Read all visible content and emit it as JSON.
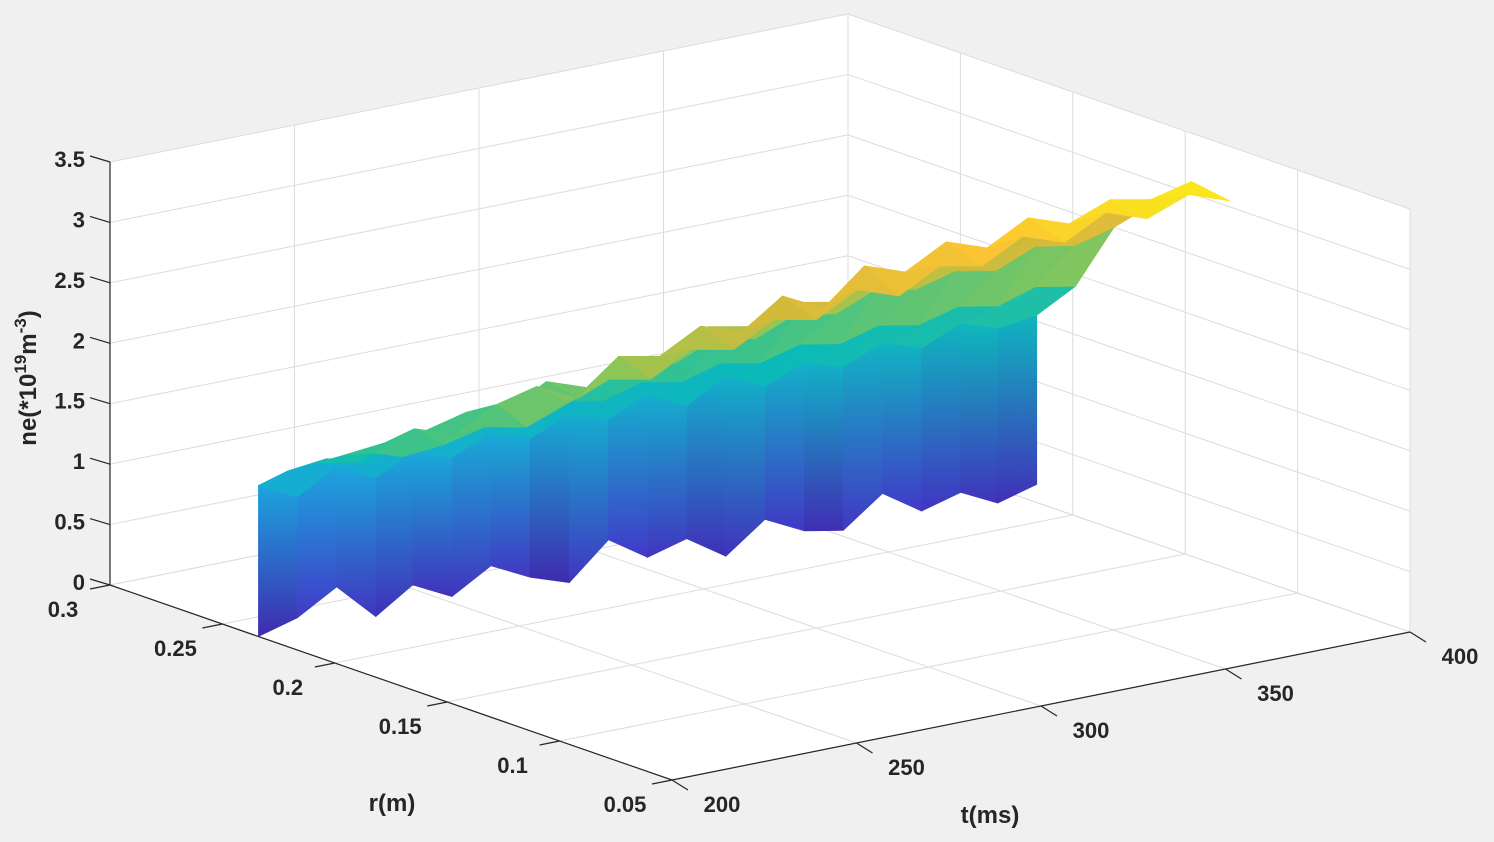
{
  "chart_data": {
    "type": "surface",
    "title": "",
    "xlabel": "t(ms)",
    "ylabel": "r(m)",
    "zlabel_parts": {
      "pre": "ne(*10",
      "sup1": "19",
      "mid": "m",
      "sup2": "-3",
      "post": ")"
    },
    "xlim": [
      200,
      400
    ],
    "ylim": [
      0.05,
      0.3
    ],
    "zlim": [
      0,
      3.5
    ],
    "grid": true,
    "colormap": "parula",
    "clim": [
      0,
      3.2
    ],
    "x_ticks": [
      "200",
      "250",
      "300",
      "350",
      "400"
    ],
    "y_ticks": [
      "0.05",
      "0.1",
      "0.15",
      "0.2",
      "0.25",
      "0.3"
    ],
    "z_ticks": [
      "0",
      "0.5",
      "1",
      "1.5",
      "2",
      "2.5",
      "3",
      "3.5"
    ],
    "profile_s": [
      0,
      0.2,
      0.4,
      0.6,
      0.8,
      1.0
    ],
    "t": [
      200,
      210,
      220,
      230,
      240,
      250,
      260,
      270,
      280,
      290,
      300,
      310,
      320,
      330,
      340,
      350,
      360,
      370,
      380,
      390,
      400
    ],
    "r_edge": [
      0.234,
      0.233,
      0.232,
      0.231,
      0.231,
      0.23,
      0.229,
      0.228,
      0.227,
      0.226,
      0.225,
      0.224,
      0.223,
      0.222,
      0.221,
      0.22,
      0.219,
      0.218,
      0.217,
      0.217,
      0.216
    ],
    "r_core": [
      0.17,
      0.168,
      0.166,
      0.164,
      0.162,
      0.16,
      0.158,
      0.156,
      0.154,
      0.152,
      0.15,
      0.148,
      0.146,
      0.144,
      0.142,
      0.14,
      0.138,
      0.136,
      0.134,
      0.132,
      0.13
    ],
    "z_base": [
      0,
      0.1,
      0.3,
      0,
      0.2,
      0.05,
      0.25,
      0.1,
      0,
      0.3,
      0.1,
      0.2,
      0,
      0.25,
      0.1,
      0.05,
      0.3,
      0.1,
      0.2,
      0.05,
      0.15
    ],
    "z": [
      [
        1.25,
        1.45,
        1.6,
        1.75,
        1.85,
        1.9
      ],
      [
        1.1,
        1.5,
        1.55,
        1.8,
        2.0,
        1.95
      ],
      [
        1.3,
        1.4,
        1.7,
        1.85,
        1.9,
        2.05
      ],
      [
        1.15,
        1.55,
        1.7,
        1.95,
        2.1,
        2.0
      ],
      [
        1.3,
        1.5,
        1.8,
        1.9,
        2.2,
        2.15
      ],
      [
        1.2,
        1.6,
        1.75,
        2.1,
        2.05,
        2.3
      ],
      [
        1.35,
        1.55,
        1.9,
        2.0,
        2.35,
        2.25
      ],
      [
        1.25,
        1.65,
        1.85,
        2.2,
        2.3,
        2.45
      ],
      [
        1.4,
        1.6,
        2.0,
        2.15,
        2.5,
        2.4
      ],
      [
        1.3,
        1.7,
        1.95,
        2.35,
        2.4,
        2.6
      ],
      [
        1.45,
        1.65,
        2.1,
        2.3,
        2.65,
        2.55
      ],
      [
        1.3,
        1.75,
        2.05,
        2.45,
        2.5,
        2.75
      ],
      [
        1.5,
        1.7,
        2.2,
        2.4,
        2.8,
        2.65
      ],
      [
        1.35,
        1.8,
        2.15,
        2.55,
        2.7,
        2.85
      ],
      [
        1.5,
        1.75,
        2.3,
        2.5,
        2.9,
        2.8
      ],
      [
        1.4,
        1.85,
        2.25,
        2.65,
        2.8,
        3.0
      ],
      [
        1.55,
        1.8,
        2.35,
        2.6,
        3.0,
        2.9
      ],
      [
        1.45,
        1.9,
        2.3,
        2.75,
        2.9,
        3.1
      ],
      [
        1.6,
        1.85,
        2.45,
        2.7,
        3.05,
        3.0
      ],
      [
        1.5,
        1.95,
        2.4,
        2.85,
        3.0,
        3.15
      ],
      [
        1.55,
        1.9,
        2.5,
        2.8,
        3.1,
        3.05
      ]
    ]
  },
  "colors": {
    "background": "#f0f0f0",
    "pane": "#ffffff",
    "grid": "#dcdcdc",
    "axis": "#262626"
  }
}
